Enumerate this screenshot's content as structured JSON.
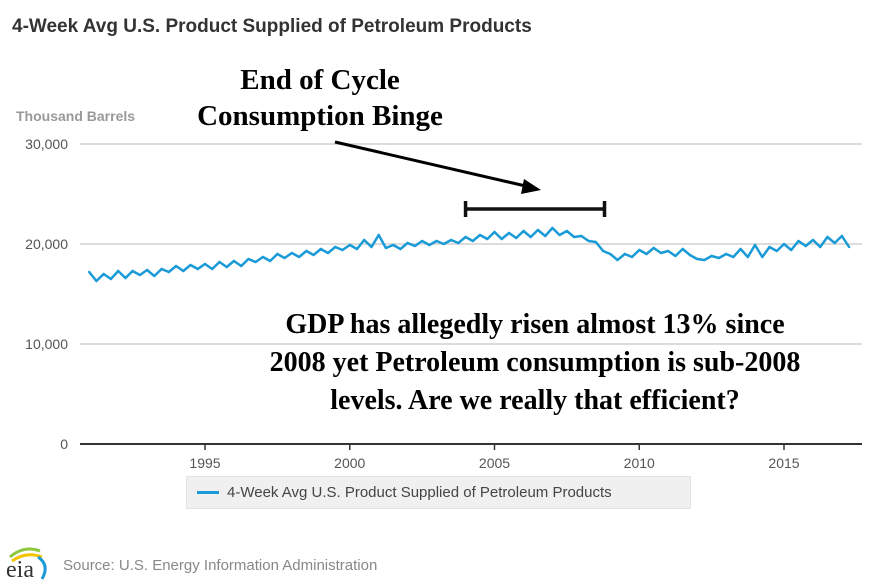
{
  "chart_data": {
    "type": "line",
    "title": "4-Week Avg U.S. Product Supplied of Petroleum Products",
    "ylabel": "Thousand Barrels",
    "xlabel": "",
    "xlim": [
      1991,
      2017.6
    ],
    "ylim": [
      0,
      30000
    ],
    "yticks": [
      0,
      10000,
      20000,
      30000
    ],
    "ytick_labels": [
      "0",
      "10,000",
      "20,000",
      "30,000"
    ],
    "xticks": [
      1995,
      2000,
      2005,
      2010,
      2015
    ],
    "xtick_labels": [
      "1995",
      "2000",
      "2005",
      "2010",
      "2015"
    ],
    "grid": true,
    "legend_position": "bottom",
    "series": [
      {
        "name": "4-Week Avg U.S. Product Supplied of Petroleum Products",
        "color": "#1a9bd7",
        "x": [
          1991.0,
          1991.25,
          1991.5,
          1991.75,
          1992.0,
          1992.25,
          1992.5,
          1992.75,
          1993.0,
          1993.25,
          1993.5,
          1993.75,
          1994.0,
          1994.25,
          1994.5,
          1994.75,
          1995.0,
          1995.25,
          1995.5,
          1995.75,
          1996.0,
          1996.25,
          1996.5,
          1996.75,
          1997.0,
          1997.25,
          1997.5,
          1997.75,
          1998.0,
          1998.25,
          1998.5,
          1998.75,
          1999.0,
          1999.25,
          1999.5,
          1999.75,
          2000.0,
          2000.25,
          2000.5,
          2000.75,
          2001.0,
          2001.25,
          2001.5,
          2001.75,
          2002.0,
          2002.25,
          2002.5,
          2002.75,
          2003.0,
          2003.25,
          2003.5,
          2003.75,
          2004.0,
          2004.25,
          2004.5,
          2004.75,
          2005.0,
          2005.25,
          2005.5,
          2005.75,
          2006.0,
          2006.25,
          2006.5,
          2006.75,
          2007.0,
          2007.25,
          2007.5,
          2007.75,
          2008.0,
          2008.25,
          2008.5,
          2008.75,
          2009.0,
          2009.25,
          2009.5,
          2009.75,
          2010.0,
          2010.25,
          2010.5,
          2010.75,
          2011.0,
          2011.25,
          2011.5,
          2011.75,
          2012.0,
          2012.25,
          2012.5,
          2012.75,
          2013.0,
          2013.25,
          2013.5,
          2013.75,
          2014.0,
          2014.25,
          2014.5,
          2014.75,
          2015.0,
          2015.25,
          2015.5,
          2015.75,
          2016.0,
          2016.25,
          2016.5,
          2016.75,
          2017.0,
          2017.25
        ],
        "values": [
          17200,
          16300,
          17000,
          16500,
          17300,
          16600,
          17300,
          16900,
          17400,
          16800,
          17500,
          17200,
          17800,
          17300,
          17900,
          17500,
          18000,
          17500,
          18200,
          17700,
          18300,
          17800,
          18500,
          18200,
          18700,
          18300,
          19000,
          18600,
          19100,
          18700,
          19300,
          18900,
          19500,
          19100,
          19700,
          19400,
          19900,
          19500,
          20400,
          19700,
          20900,
          19600,
          19900,
          19500,
          20100,
          19800,
          20300,
          19900,
          20300,
          20000,
          20400,
          20100,
          20700,
          20300,
          20900,
          20500,
          21200,
          20500,
          21100,
          20600,
          21300,
          20700,
          21400,
          20800,
          21600,
          20900,
          21300,
          20700,
          20800,
          20300,
          20200,
          19300,
          19000,
          18400,
          19000,
          18700,
          19400,
          19000,
          19600,
          19100,
          19300,
          18800,
          19500,
          18900,
          18500,
          18400,
          18800,
          18600,
          19000,
          18700,
          19500,
          18700,
          19900,
          18700,
          19700,
          19300,
          20000,
          19400,
          20300,
          19800,
          20400,
          19700,
          20700,
          20100,
          20800,
          19700
        ]
      }
    ]
  },
  "annotations": {
    "cycle_line1": "End of Cycle",
    "cycle_line2": "Consumption Binge",
    "gdp_line1": "GDP has allegedly risen almost 13% since",
    "gdp_line2": "2008 yet Petroleum consumption is sub-2008",
    "gdp_line3": "levels. Are we really that efficient?",
    "bracket_range": [
      2004,
      2008.8
    ]
  },
  "footer": {
    "logo_text": "eia",
    "source": "Source: U.S. Energy Information Administration"
  }
}
